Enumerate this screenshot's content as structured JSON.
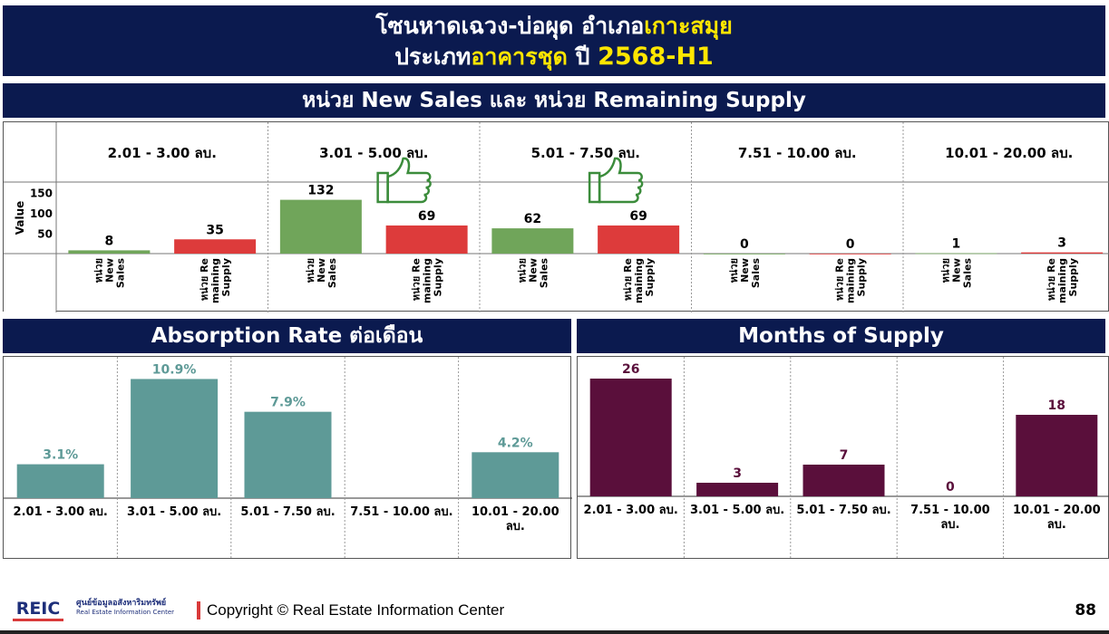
{
  "banner": {
    "line1_a": "โซนหาดเฉวง-บ่อผุด อำเภอ",
    "line1_b": "เกาะสมุย",
    "line2_a": "ประเภท",
    "line2_b": "อาคารชุด",
    "line2_c": " ปี ",
    "line2_d": "2568-H1"
  },
  "sections": {
    "top": "หน่วย New Sales และ หน่วย Remaining Supply",
    "absorption": "Absorption Rate ต่อเดือน",
    "mos": "Months of Supply"
  },
  "icons": [
    "thumbs-up-icon",
    "thumbs-up-icon"
  ],
  "colors": {
    "navy": "#0b1a4f",
    "green": "#70a55a",
    "red": "#dd3b3b",
    "teal": "#5e9a97",
    "purple": "#5a0f3b",
    "yellow": "#ffe600"
  },
  "chart_data": [
    {
      "type": "bar",
      "categories": [
        "2.01 - 3.00 ลบ.",
        "3.01 - 5.00 ลบ.",
        "5.01 - 7.50 ลบ.",
        "7.51 - 10.00 ลบ.",
        "10.01 - 20.00 ลบ."
      ],
      "subcategories": [
        "หน่วย New Sales",
        "หน่วย Re maining Supply"
      ],
      "series": [
        {
          "name": "หน่วย New Sales",
          "values": [
            8,
            132,
            62,
            0,
            1
          ]
        },
        {
          "name": "หน่วย Re maining Supply",
          "values": [
            35,
            69,
            69,
            0,
            3
          ]
        }
      ],
      "ylabel": "Value",
      "yticks": [
        50,
        100,
        150
      ],
      "ylim": [
        0,
        160
      ]
    },
    {
      "type": "bar",
      "categories": [
        "2.01 - 3.00 ลบ.",
        "3.01 - 5.00 ลบ.",
        "5.01 - 7.50 ลบ.",
        "7.51 - 10.00 ลบ.",
        "10.01 - 20.00 ลบ."
      ],
      "values": [
        3.1,
        10.9,
        7.9,
        null,
        4.2
      ],
      "labels": [
        "3.1%",
        "10.9%",
        "7.9%",
        "",
        "4.2%"
      ],
      "ylim": [
        0,
        11.6
      ]
    },
    {
      "type": "bar",
      "categories": [
        "2.01 - 3.00 ลบ.",
        "3.01 - 5.00 ลบ.",
        "5.01 - 7.50 ลบ.",
        "7.51 - 10.00 ลบ.",
        "10.01 - 20.00 ลบ."
      ],
      "values": [
        26,
        3,
        7,
        0,
        18
      ],
      "labels": [
        "26",
        "3",
        "7",
        "0",
        "18"
      ],
      "ylim": [
        0,
        28
      ]
    }
  ],
  "footer": {
    "logo_text": "REIC",
    "logo_th": "ศูนย์ข้อมูลอสังหาริมทรัพย์",
    "logo_en": "Real Estate Information Center",
    "copyright": "Copyright © Real Estate Information Center",
    "page": "88"
  }
}
